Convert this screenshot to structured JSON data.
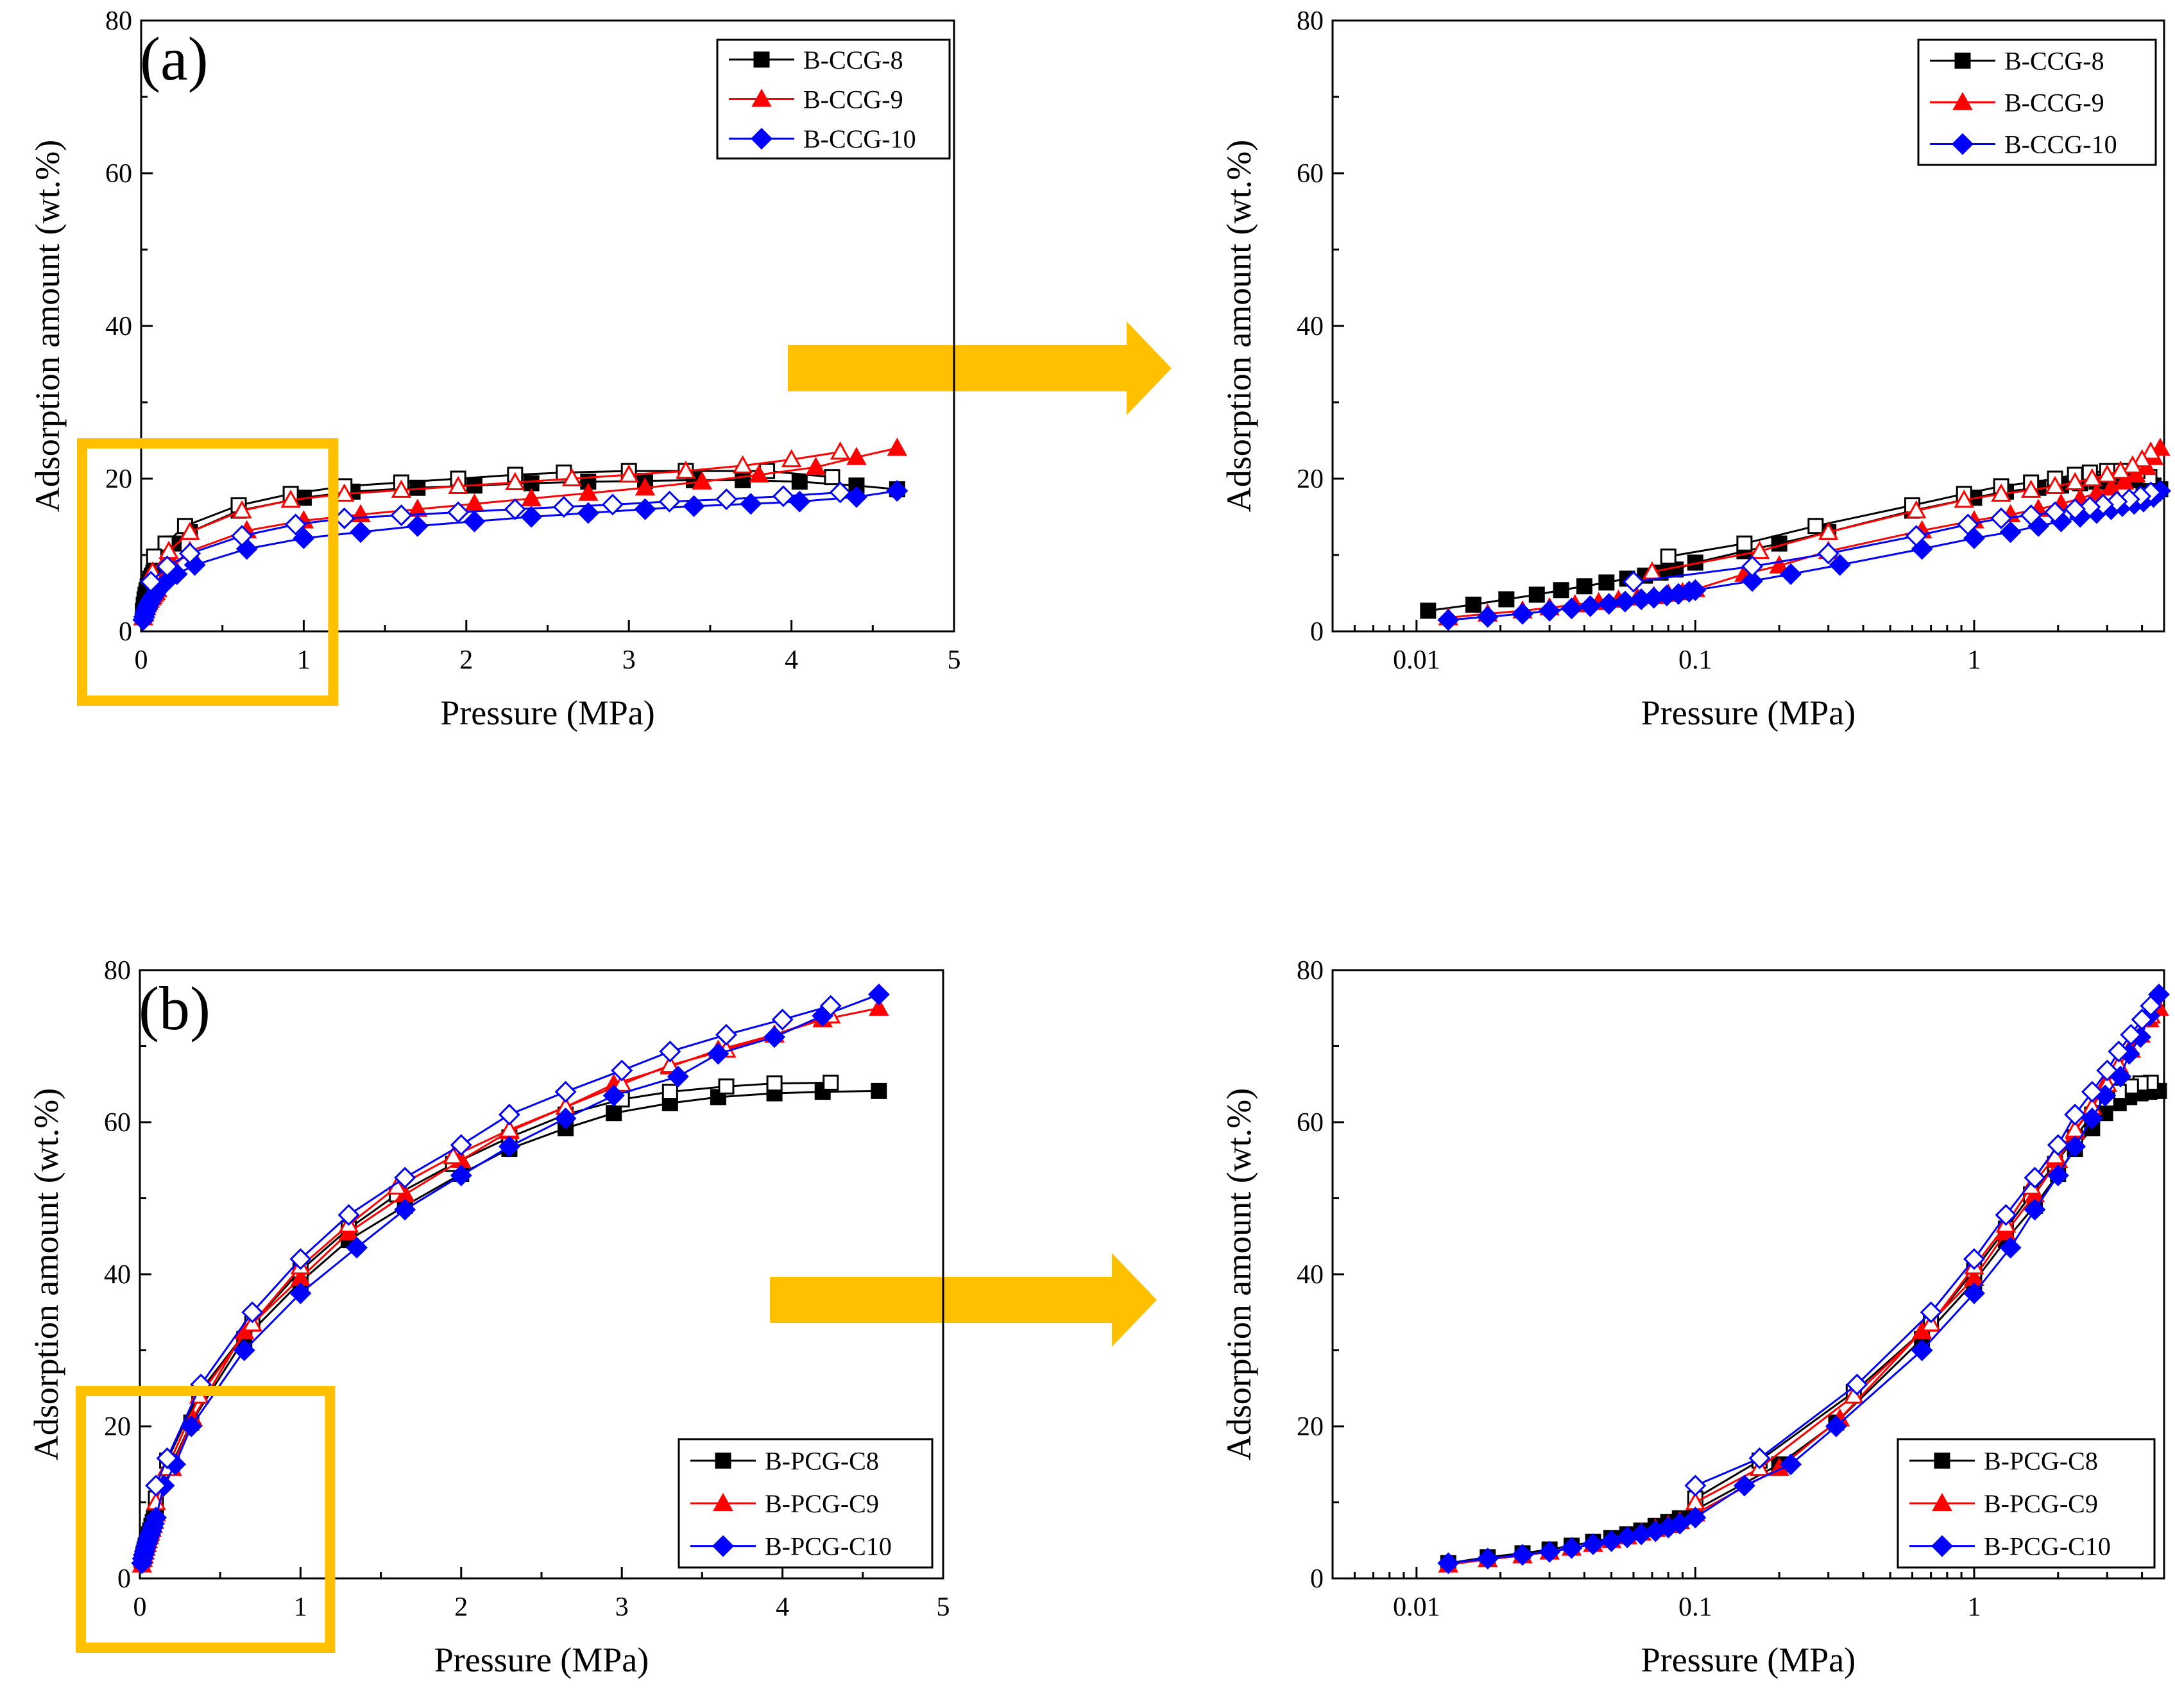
{
  "colors": {
    "black": "#000000",
    "red": "#ff0000",
    "blue": "#0000ff",
    "highlight": "#ffc000"
  },
  "chart_data": [
    {
      "id": "a-linear",
      "type": "line",
      "panel_label": "(a)",
      "xlabel": "Pressure (MPa)",
      "ylabel": "Adsorption amount (wt.%)",
      "xscale": "linear",
      "xlim": [
        0,
        5
      ],
      "ylim": [
        0,
        80
      ],
      "xticks": [
        0,
        1,
        2,
        3,
        4,
        5
      ],
      "xtick_labels": [
        "0",
        "1",
        "2",
        "3",
        "4",
        "5"
      ],
      "yticks": [
        0,
        20,
        40,
        60,
        80
      ],
      "ytick_labels": [
        "0",
        "20",
        "40",
        "60",
        "80"
      ],
      "legend": "top-right",
      "highlight_box": {
        "x_range": [
          0,
          1
        ],
        "y_range": [
          0,
          20
        ]
      },
      "series": [
        {
          "name": "B-CCG-8",
          "color": "#000000",
          "marker": "square",
          "adsorption": {
            "x": [
              0.011,
              0.016,
              0.021,
              0.027,
              0.033,
              0.04,
              0.048,
              0.057,
              0.066,
              0.075,
              0.085,
              0.1,
              0.15,
              0.2,
              0.3,
              0.6,
              1.0,
              1.3,
              1.7,
              2.05,
              2.4,
              2.75,
              3.1,
              3.4,
              3.7,
              4.05,
              4.4,
              4.65
            ],
            "y": [
              2.7,
              3.5,
              4.2,
              4.8,
              5.4,
              5.9,
              6.4,
              6.9,
              7.3,
              7.7,
              8.1,
              9.0,
              10.5,
              11.5,
              13.0,
              15.8,
              17.5,
              18.3,
              18.8,
              19.1,
              19.4,
              19.6,
              19.7,
              19.8,
              19.8,
              19.6,
              19.1,
              18.6
            ]
          },
          "desorption": {
            "x": [
              4.25,
              3.85,
              3.35,
              3.0,
              2.6,
              2.3,
              1.95,
              1.6,
              1.25,
              0.92,
              0.6,
              0.27,
              0.15,
              0.08
            ],
            "y": [
              20.2,
              21.0,
              21.0,
              21.0,
              20.8,
              20.5,
              20.0,
              19.5,
              19.0,
              18.0,
              16.5,
              13.8,
              11.5,
              9.8
            ]
          }
        },
        {
          "name": "B-CCG-9",
          "color": "#ff0000",
          "marker": "triangle",
          "adsorption": {
            "x": [
              0.013,
              0.018,
              0.024,
              0.03,
              0.037,
              0.045,
              0.053,
              0.062,
              0.071,
              0.08,
              0.09,
              0.1,
              0.15,
              0.2,
              0.3,
              0.65,
              1.0,
              1.35,
              1.7,
              2.05,
              2.4,
              2.75,
              3.1,
              3.45,
              3.8,
              4.15,
              4.4,
              4.65
            ],
            "y": [
              1.8,
              2.3,
              2.7,
              3.1,
              3.5,
              3.8,
              4.1,
              4.4,
              4.6,
              4.9,
              5.1,
              5.5,
              7.5,
              8.6,
              10.5,
              13.2,
              14.5,
              15.3,
              16.0,
              16.7,
              17.4,
              18.1,
              18.8,
              19.6,
              20.5,
              21.5,
              22.8,
              24.0
            ]
          },
          "desorption": {
            "x": [
              4.3,
              4.0,
              3.7,
              3.35,
              3.0,
              2.65,
              2.3,
              1.95,
              1.6,
              1.25,
              0.92,
              0.62,
              0.3,
              0.17,
              0.07
            ],
            "y": [
              23.5,
              22.5,
              21.7,
              21.0,
              20.5,
              20.0,
              19.5,
              19.0,
              18.5,
              18.0,
              17.2,
              15.8,
              13.0,
              10.5,
              7.8
            ]
          }
        },
        {
          "name": "B-CCG-10",
          "color": "#0000ff",
          "marker": "diamond",
          "adsorption": {
            "x": [
              0.013,
              0.018,
              0.024,
              0.03,
              0.036,
              0.042,
              0.049,
              0.056,
              0.064,
              0.071,
              0.079,
              0.087,
              0.095,
              0.1,
              0.16,
              0.22,
              0.33,
              0.65,
              1.0,
              1.35,
              1.7,
              2.05,
              2.4,
              2.75,
              3.1,
              3.4,
              3.75,
              4.05,
              4.4,
              4.65
            ],
            "y": [
              1.5,
              1.9,
              2.3,
              2.7,
              3.0,
              3.3,
              3.6,
              3.9,
              4.2,
              4.4,
              4.7,
              4.9,
              5.2,
              5.4,
              6.6,
              7.5,
              8.7,
              10.8,
              12.2,
              13.0,
              13.8,
              14.4,
              15.0,
              15.5,
              16.0,
              16.4,
              16.7,
              17.0,
              17.6,
              18.4
            ]
          },
          "desorption": {
            "x": [
              4.3,
              3.95,
              3.6,
              3.25,
              2.9,
              2.6,
              2.3,
              1.95,
              1.6,
              1.25,
              0.95,
              0.62,
              0.3,
              0.16,
              0.06
            ],
            "y": [
              18.2,
              17.7,
              17.3,
              17.0,
              16.6,
              16.3,
              16.0,
              15.6,
              15.2,
              14.8,
              14.0,
              12.5,
              10.2,
              8.5,
              6.5
            ]
          }
        }
      ]
    },
    {
      "id": "a-log",
      "type": "line",
      "xlabel": "Pressure (MPa)",
      "ylabel": "Adsorption amount (wt.%)",
      "xscale": "log",
      "xlim": [
        0.005,
        4.8
      ],
      "ylim": [
        0,
        80
      ],
      "xticks": [
        0.01,
        0.1,
        1
      ],
      "xtick_labels": [
        "0.01",
        "0.1",
        "1"
      ],
      "yticks": [
        0,
        20,
        40,
        60,
        80
      ],
      "ytick_labels": [
        "0",
        "20",
        "40",
        "60",
        "80"
      ],
      "legend": "top-right",
      "series_ref": "a-linear"
    },
    {
      "id": "b-linear",
      "type": "line",
      "panel_label": "(b)",
      "xlabel": "Pressure (MPa)",
      "ylabel": "Adsorption amount (wt.%)",
      "xscale": "linear",
      "xlim": [
        0,
        5
      ],
      "ylim": [
        0,
        80
      ],
      "xticks": [
        0,
        1,
        2,
        3,
        4,
        5
      ],
      "xtick_labels": [
        "0",
        "1",
        "2",
        "3",
        "4",
        "5"
      ],
      "yticks": [
        0,
        20,
        40,
        60,
        80
      ],
      "ytick_labels": [
        "0",
        "20",
        "40",
        "60",
        "80"
      ],
      "legend": "bottom-right",
      "highlight_box": {
        "x_range": [
          0,
          1
        ],
        "y_range": [
          0,
          20
        ]
      },
      "series": [
        {
          "name": "B-PCG-C8",
          "color": "#000000",
          "marker": "square",
          "adsorption": {
            "x": [
              0.013,
              0.018,
              0.024,
              0.03,
              0.036,
              0.043,
              0.05,
              0.057,
              0.064,
              0.072,
              0.08,
              0.088,
              0.1,
              0.2,
              0.32,
              0.65,
              1.0,
              1.3,
              1.65,
              2.0,
              2.3,
              2.65,
              2.95,
              3.3,
              3.6,
              3.95,
              4.25,
              4.6
            ],
            "y": [
              2.0,
              2.8,
              3.3,
              3.8,
              4.3,
              4.8,
              5.3,
              5.8,
              6.3,
              6.9,
              7.4,
              7.9,
              9.0,
              15.0,
              20.5,
              31.5,
              39.0,
              44.5,
              49.0,
              53.2,
              56.5,
              59.2,
              61.2,
              62.5,
              63.3,
              63.8,
              64.0,
              64.1
            ]
          },
          "desorption": {
            "x": [
              4.3,
              3.95,
              3.65,
              3.3,
              3.0,
              2.65,
              2.3,
              1.95,
              1.6,
              1.3,
              1.0,
              0.7,
              0.37,
              0.17,
              0.1
            ],
            "y": [
              65.2,
              65.1,
              64.7,
              64.0,
              63.0,
              61.0,
              58.0,
              54.5,
              50.5,
              46.0,
              40.5,
              33.5,
              24.5,
              15.5,
              10.5
            ]
          }
        },
        {
          "name": "B-PCG-C9",
          "color": "#ff0000",
          "marker": "triangle",
          "adsorption": {
            "x": [
              0.013,
              0.018,
              0.024,
              0.03,
              0.036,
              0.043,
              0.05,
              0.057,
              0.064,
              0.072,
              0.08,
              0.088,
              0.1,
              0.2,
              0.33,
              0.65,
              1.0,
              1.3,
              1.65,
              2.0,
              2.3,
              2.65,
              2.95,
              3.3,
              3.6,
              3.95,
              4.25,
              4.6
            ],
            "y": [
              1.8,
              2.5,
              3.0,
              3.5,
              4.0,
              4.5,
              5.0,
              5.5,
              6.0,
              6.5,
              7.0,
              7.5,
              8.5,
              14.5,
              21.0,
              32.5,
              39.5,
              45.5,
              50.5,
              55.0,
              58.8,
              62.0,
              65.0,
              67.3,
              69.5,
              71.5,
              73.5,
              75.0
            ]
          },
          "desorption": {
            "x": [
              4.3,
              3.95,
              3.65,
              3.3,
              3.0,
              2.65,
              2.3,
              1.95,
              1.6,
              1.3,
              1.0,
              0.7,
              0.37,
              0.17,
              0.1
            ],
            "y": [
              74.0,
              71.5,
              69.5,
              67.5,
              65.0,
              62.0,
              59.0,
              55.5,
              51.5,
              46.5,
              41.0,
              33.5,
              24.0,
              14.5,
              10.0
            ]
          }
        },
        {
          "name": "B-PCG-C10",
          "color": "#0000ff",
          "marker": "diamond",
          "adsorption": {
            "x": [
              0.013,
              0.018,
              0.024,
              0.03,
              0.036,
              0.043,
              0.05,
              0.057,
              0.064,
              0.072,
              0.08,
              0.088,
              0.1,
              0.15,
              0.22,
              0.32,
              0.65,
              1.0,
              1.35,
              1.65,
              2.0,
              2.3,
              2.65,
              2.95,
              3.35,
              3.6,
              3.95,
              4.25,
              4.6
            ],
            "y": [
              2.0,
              2.6,
              3.1,
              3.5,
              4.0,
              4.5,
              4.9,
              5.4,
              5.8,
              6.2,
              6.7,
              7.2,
              8.0,
              12.2,
              15.0,
              20.0,
              30.0,
              37.5,
              43.5,
              48.5,
              53.0,
              56.8,
              60.5,
              63.5,
              66.0,
              69.0,
              71.2,
              74.0,
              76.8
            ]
          },
          "desorption": {
            "x": [
              4.3,
              4.0,
              3.65,
              3.3,
              3.0,
              2.65,
              2.3,
              2.0,
              1.65,
              1.3,
              1.0,
              0.7,
              0.38,
              0.17,
              0.1
            ],
            "y": [
              75.3,
              73.5,
              71.5,
              69.3,
              66.8,
              64.0,
              61.0,
              57.0,
              52.7,
              47.8,
              42.0,
              35.0,
              25.5,
              15.8,
              12.2
            ]
          }
        }
      ]
    },
    {
      "id": "b-log",
      "type": "line",
      "xlabel": "Pressure (MPa)",
      "ylabel": "Adsorption amount (wt.%)",
      "xscale": "log",
      "xlim": [
        0.005,
        4.8
      ],
      "ylim": [
        0,
        80
      ],
      "xticks": [
        0.01,
        0.1,
        1
      ],
      "xtick_labels": [
        "0.01",
        "0.1",
        "1"
      ],
      "yticks": [
        0,
        20,
        40,
        60,
        80
      ],
      "ytick_labels": [
        "0",
        "20",
        "40",
        "60",
        "80"
      ],
      "legend": "bottom-right",
      "series_ref": "b-linear"
    }
  ]
}
